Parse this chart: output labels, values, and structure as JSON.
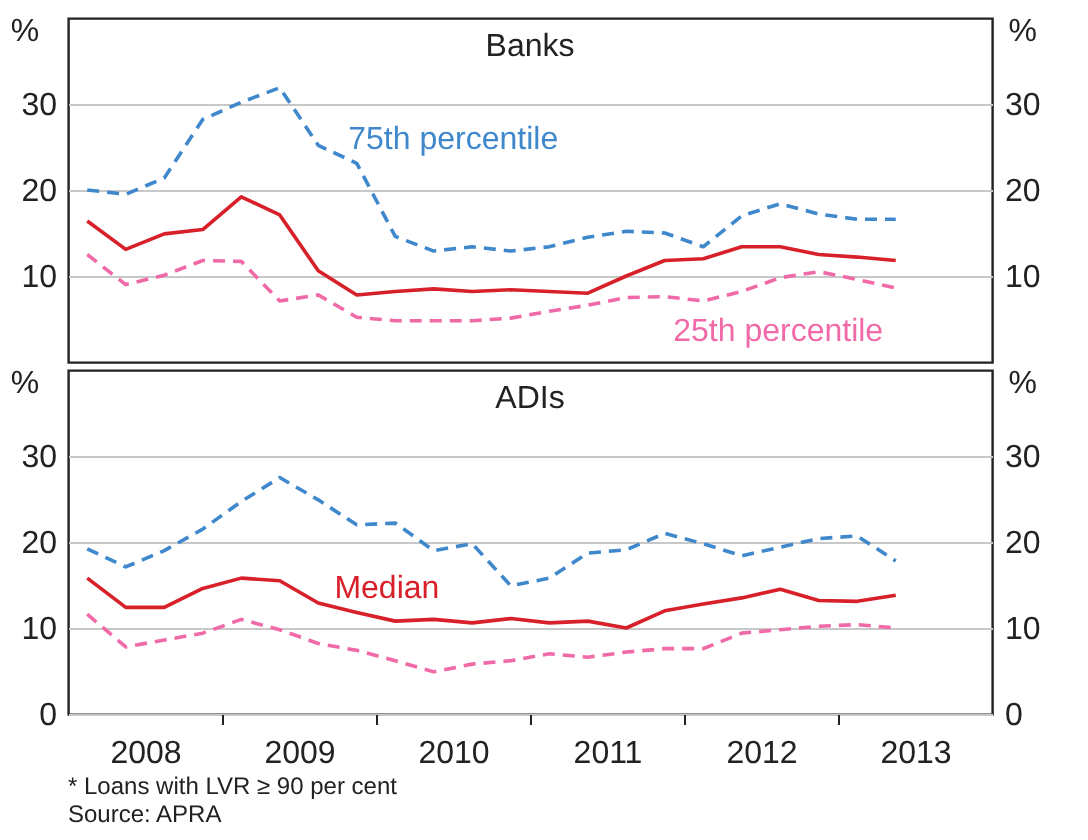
{
  "chart_data": [
    {
      "type": "line",
      "title": "Banks",
      "ylabel": "%",
      "y2label": "%",
      "x": [
        2008.125,
        2008.375,
        2008.625,
        2008.875,
        2009.125,
        2009.375,
        2009.625,
        2009.875,
        2010.125,
        2010.375,
        2010.625,
        2010.875,
        2011.125,
        2011.375,
        2011.625,
        2011.875,
        2012.125,
        2012.375,
        2012.625,
        2012.875,
        2013.125,
        2013.375
      ],
      "xlim": [
        2008,
        2014
      ],
      "ylim": [
        0,
        40
      ],
      "yticks": [
        10,
        20,
        30
      ],
      "y2lim": [
        0,
        40
      ],
      "y2ticks": [
        10,
        20,
        30
      ],
      "grid": "y",
      "tick_labels": "y",
      "series": [
        {
          "name": "75th percentile",
          "color": "#3f88cc",
          "line_style": "dashed",
          "values": [
            20.0,
            19.5,
            21.4,
            28.2,
            30.2,
            31.9,
            25.2,
            23.1,
            14.6,
            12.9,
            13.4,
            12.9,
            13.4,
            14.5,
            15.2,
            15.0,
            13.4,
            17.0,
            18.4,
            17.2,
            16.6,
            16.6
          ]
        },
        {
          "color": "#d7202a",
          "line_style": "solid",
          "values": [
            16.4,
            13.1,
            14.9,
            15.4,
            19.2,
            17.1,
            10.6,
            7.8,
            8.2,
            8.5,
            8.2,
            8.4,
            8.2,
            8.0,
            10.0,
            11.8,
            12.0,
            13.4,
            13.4,
            12.5,
            12.2,
            11.8
          ]
        },
        {
          "name": "25th percentile",
          "color": "#f06aa8",
          "line_style": "dashed",
          "values": [
            12.5,
            9.0,
            10.1,
            11.8,
            11.7,
            7.1,
            7.8,
            5.2,
            4.8,
            4.8,
            4.8,
            5.1,
            5.9,
            6.6,
            7.5,
            7.6,
            7.1,
            8.2,
            9.8,
            10.5,
            9.6,
            8.6
          ]
        }
      ]
    },
    {
      "type": "line",
      "title": "ADIs",
      "ylabel": "%",
      "y2label": "%",
      "x": [
        2008.125,
        2008.375,
        2008.625,
        2008.875,
        2009.125,
        2009.375,
        2009.625,
        2009.875,
        2010.125,
        2010.375,
        2010.625,
        2010.875,
        2011.125,
        2011.375,
        2011.625,
        2011.875,
        2012.125,
        2012.375,
        2012.625,
        2012.875,
        2013.125,
        2013.375
      ],
      "xlim": [
        2008,
        2014
      ],
      "xticks": [
        {
          "value": 2008.5,
          "label": "2008"
        },
        {
          "value": 2009,
          "label": null
        },
        {
          "value": 2009.5,
          "label": "2009"
        },
        {
          "value": 2010,
          "label": null
        },
        {
          "value": 2010.5,
          "label": "2010"
        },
        {
          "value": 2011,
          "label": null
        },
        {
          "value": 2011.5,
          "label": "2011"
        },
        {
          "value": 2012,
          "label": null
        },
        {
          "value": 2012.5,
          "label": "2012"
        },
        {
          "value": 2013,
          "label": null
        },
        {
          "value": 2013.5,
          "label": "2013"
        }
      ],
      "ylim": [
        0,
        40
      ],
      "yticks": [
        0,
        10,
        20,
        30
      ],
      "y2lim": [
        0,
        40
      ],
      "y2ticks": [
        0,
        10,
        20,
        30
      ],
      "grid": "y",
      "annotations": [
        "*   Loans with LVR ≥ 90 per cent",
        "Source: APRA"
      ],
      "series": [
        {
          "color": "#3f88cc",
          "line_style": "dashed",
          "values": [
            19.2,
            17.1,
            19.0,
            21.5,
            24.7,
            27.5,
            24.9,
            22.0,
            22.2,
            19.0,
            19.8,
            14.9,
            15.8,
            18.7,
            19.1,
            21.0,
            19.8,
            18.4,
            19.4,
            20.4,
            20.7,
            17.8
          ]
        },
        {
          "name": "Median",
          "color": "#d7202a",
          "line_style": "solid",
          "values": [
            15.8,
            12.4,
            12.4,
            14.6,
            15.8,
            15.5,
            12.9,
            11.8,
            10.8,
            11.0,
            10.6,
            11.1,
            10.6,
            10.8,
            10.0,
            12.0,
            12.8,
            13.5,
            14.5,
            13.2,
            13.1,
            13.8
          ]
        },
        {
          "color": "#f06aa8",
          "line_style": "dashed",
          "values": [
            11.6,
            7.8,
            8.6,
            9.4,
            11.0,
            9.8,
            8.2,
            7.4,
            6.2,
            4.9,
            5.8,
            6.2,
            7.0,
            6.6,
            7.2,
            7.6,
            7.6,
            9.4,
            9.8,
            10.2,
            10.4,
            10.0
          ]
        }
      ]
    }
  ]
}
